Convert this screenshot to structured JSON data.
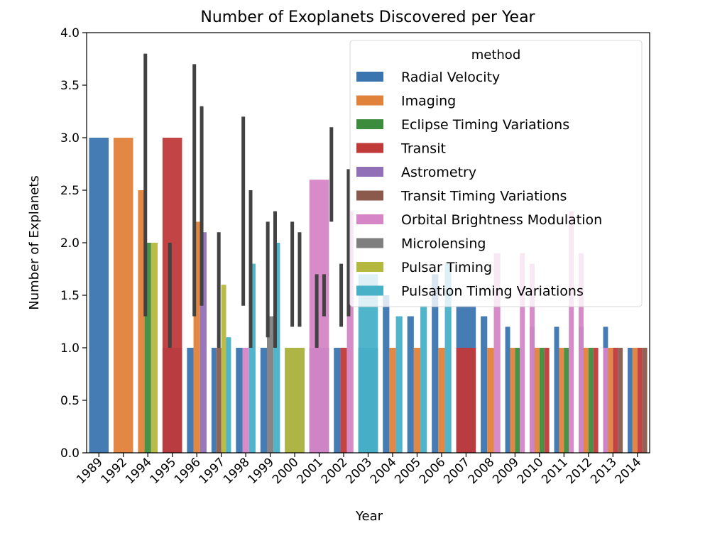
{
  "chart_data": {
    "type": "bar",
    "title": "Number of Exoplanets Discovered per Year",
    "xlabel": "Year",
    "ylabel": "Number of Explanets",
    "ylim": [
      0,
      4.0
    ],
    "yticks": [
      "0.0",
      "0.5",
      "1.0",
      "1.5",
      "2.0",
      "2.5",
      "3.0",
      "3.5",
      "4.0"
    ],
    "categories": [
      "1989",
      "1992",
      "1994",
      "1995",
      "1996",
      "1997",
      "1998",
      "1999",
      "2000",
      "2001",
      "2002",
      "2003",
      "2004",
      "2005",
      "2006",
      "2007",
      "2008",
      "2009",
      "2010",
      "2011",
      "2012",
      "2013",
      "2014"
    ],
    "legend": {
      "title": "method",
      "placement": "top-right",
      "entries": [
        "Radial Velocity",
        "Imaging",
        "Eclipse Timing Variations",
        "Transit",
        "Astrometry",
        "Transit Timing Variations",
        "Orbital Brightness Modulation",
        "Microlensing",
        "Pulsar Timing",
        "Pulsation Timing Variations"
      ]
    },
    "series": [
      {
        "name": "Radial Velocity",
        "color": "#3a75af",
        "values": [
          3.0,
          null,
          null,
          1.0,
          1.0,
          1.0,
          1.0,
          1.0,
          1.0,
          1.0,
          1.0,
          1.0,
          1.5,
          1.3,
          1.7,
          1.4,
          1.3,
          1.2,
          1.2,
          1.2,
          1.2,
          1.2,
          1.0
        ]
      },
      {
        "name": "Imaging",
        "color": "#e0823a",
        "values": [
          null,
          3.0,
          2.5,
          null,
          2.2,
          null,
          null,
          null,
          null,
          null,
          null,
          null,
          1.0,
          1.0,
          1.0,
          null,
          1.0,
          1.0,
          1.0,
          1.0,
          1.0,
          1.0,
          1.0
        ]
      },
      {
        "name": "Eclipse Timing Variations",
        "color": "#3d8c3d",
        "values": [
          null,
          null,
          2.0,
          null,
          null,
          null,
          null,
          null,
          null,
          null,
          null,
          null,
          null,
          null,
          null,
          null,
          null,
          1.0,
          1.0,
          1.0,
          1.0,
          null,
          null
        ]
      },
      {
        "name": "Transit",
        "color": "#c03a3a",
        "values": [
          null,
          null,
          null,
          3.0,
          null,
          null,
          null,
          null,
          null,
          null,
          1.0,
          null,
          null,
          null,
          null,
          1.0,
          null,
          null,
          1.0,
          null,
          1.0,
          1.0,
          1.0
        ]
      },
      {
        "name": "Astrometry",
        "color": "#9270b8",
        "values": [
          null,
          null,
          null,
          null,
          2.1,
          null,
          null,
          null,
          null,
          null,
          null,
          null,
          null,
          null,
          null,
          null,
          null,
          null,
          null,
          null,
          null,
          null,
          null
        ]
      },
      {
        "name": "Transit Timing Variations",
        "color": "#8b5a4d",
        "values": [
          null,
          null,
          null,
          null,
          null,
          1.0,
          null,
          null,
          null,
          null,
          null,
          null,
          null,
          null,
          null,
          null,
          null,
          null,
          null,
          null,
          null,
          1.0,
          1.0
        ]
      },
      {
        "name": "Orbital Brightness Modulation",
        "color": "#d685c6",
        "values": [
          null,
          null,
          null,
          null,
          null,
          null,
          1.0,
          null,
          null,
          2.6,
          2.3,
          null,
          null,
          null,
          null,
          null,
          1.9,
          1.9,
          1.8,
          2.3,
          1.9,
          1.0,
          null
        ]
      },
      {
        "name": "Microlensing",
        "color": "#7f7f7f",
        "values": [
          null,
          null,
          null,
          null,
          null,
          null,
          null,
          1.3,
          null,
          null,
          null,
          null,
          null,
          null,
          null,
          null,
          null,
          null,
          null,
          null,
          null,
          null,
          null
        ]
      },
      {
        "name": "Pulsar Timing",
        "color": "#b5b83e",
        "values": [
          null,
          null,
          2.0,
          null,
          null,
          1.6,
          null,
          null,
          1.0,
          null,
          null,
          null,
          null,
          null,
          null,
          null,
          null,
          null,
          null,
          null,
          null,
          null,
          null
        ]
      },
      {
        "name": "Pulsation Timing Variations",
        "color": "#47b1c8",
        "values": [
          null,
          null,
          null,
          null,
          null,
          1.1,
          1.8,
          2.0,
          null,
          null,
          null,
          1.7,
          1.3,
          1.4,
          1.8,
          null,
          null,
          null,
          null,
          null,
          null,
          null,
          null
        ]
      }
    ],
    "error_bars": [
      {
        "category": "1994",
        "low": 1.3,
        "high": 3.8
      },
      {
        "category": "1995",
        "low": 1.0,
        "high": 2.0
      },
      {
        "category": "1996",
        "low": 1.3,
        "high": 3.7
      },
      {
        "category": "1996",
        "low": 1.4,
        "high": 3.3
      },
      {
        "category": "1997",
        "low": 1.0,
        "high": 2.1
      },
      {
        "category": "1998",
        "low": 1.4,
        "high": 3.2
      },
      {
        "category": "1998",
        "low": 1.0,
        "high": 2.5
      },
      {
        "category": "1999",
        "low": 1.1,
        "high": 2.2
      },
      {
        "category": "1999",
        "low": 1.0,
        "high": 2.3
      },
      {
        "category": "2000",
        "low": 1.2,
        "high": 2.2
      },
      {
        "category": "2000",
        "low": 1.2,
        "high": 2.1
      },
      {
        "category": "2001",
        "low": 1.0,
        "high": 1.7
      },
      {
        "category": "2001",
        "low": 1.3,
        "high": 1.7
      },
      {
        "category": "2001",
        "low": 2.2,
        "high": 3.1
      },
      {
        "category": "2002",
        "low": 1.2,
        "high": 1.8
      },
      {
        "category": "2002",
        "low": 1.3,
        "high": 2.7
      }
    ],
    "grid": false
  }
}
